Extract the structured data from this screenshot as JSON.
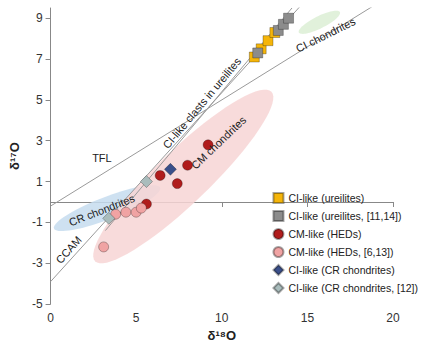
{
  "chart_data": {
    "type": "scatter",
    "xlabel": "δ¹⁸O",
    "ylabel": "δ¹⁷O",
    "xlim": [
      0,
      20
    ],
    "ylim": [
      -5,
      9.5
    ],
    "xticks": [
      0,
      5,
      10,
      15,
      20
    ],
    "yticks": [
      -5,
      -3,
      -1,
      1,
      3,
      5,
      7,
      9
    ],
    "grid": false,
    "legend": "lower right",
    "series": [
      {
        "name": "CI-like (ureilites)",
        "color": "#f5b50a",
        "marker": "square",
        "x": [
          11.9,
          12.3,
          12.7,
          13.1
        ],
        "values": [
          7.1,
          7.5,
          7.9,
          8.3
        ]
      },
      {
        "name": "CI-like (ureilites, [11,14])",
        "color": "#8c8c8c",
        "marker": "square",
        "x": [
          12.1,
          13.3,
          13.6,
          13.9
        ],
        "values": [
          7.3,
          8.4,
          8.7,
          9.0
        ]
      },
      {
        "name": "CM-like (HEDs)",
        "color": "#b01c1c",
        "marker": "circle",
        "x": [
          5.6,
          6.4,
          7.4,
          8.0,
          9.2
        ],
        "values": [
          -0.1,
          1.3,
          0.9,
          1.8,
          2.8
        ]
      },
      {
        "name": "CM-like (HEDs, [6,13])",
        "color": "#f0a3a3",
        "marker": "circle",
        "x": [
          3.1,
          3.8,
          4.4,
          5.0,
          5.3
        ],
        "values": [
          -2.2,
          -0.6,
          -0.5,
          -0.5,
          -0.3
        ]
      },
      {
        "name": "CI-like (CR chondrites)",
        "color": "#3a4f8a",
        "marker": "diamond",
        "x": [
          7.0
        ],
        "values": [
          1.6
        ]
      },
      {
        "name": "CI-like (CR chondrites, [12])",
        "color": "#a9bcbc",
        "marker": "diamond",
        "x": [
          5.6,
          3.4
        ],
        "values": [
          1.0,
          -0.8
        ]
      }
    ],
    "lines": [
      {
        "name": "TFL",
        "color": "#9a9a9a",
        "x": [
          0,
          20
        ],
        "values": [
          -0.2,
          10.2
        ]
      },
      {
        "name": "CCAM",
        "color": "#9a9a9a",
        "x": [
          0,
          20
        ],
        "values": [
          -3.9,
          14.6
        ]
      },
      {
        "name": "CI-like clasts in ureilites",
        "color": "#9a9a9a",
        "x": [
          3.2,
          14.1
        ],
        "values": [
          -1.4,
          9.5
        ]
      }
    ],
    "regions": [
      {
        "name": "CR chondrites",
        "color": "#c6dcef",
        "from": [
          0.2,
          -1.3
        ],
        "to": [
          6.4,
          0.7
        ],
        "half_width": 0.55
      },
      {
        "name": "CM chondrites",
        "color": "#f7d5d5",
        "from": [
          2.6,
          -2.9
        ],
        "to": [
          12.9,
          5.4
        ],
        "half_width": 1.3
      },
      {
        "name": "CI chondrites",
        "color": "#dcefd5",
        "from": [
          14.5,
          8.3
        ],
        "to": [
          16.9,
          9.3
        ],
        "half_width": 0.3
      }
    ]
  }
}
